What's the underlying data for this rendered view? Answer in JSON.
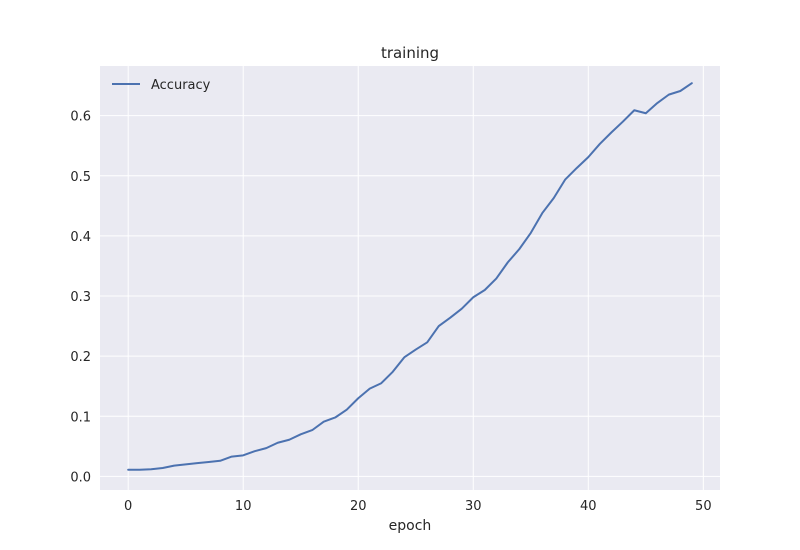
{
  "chart_data": {
    "type": "line",
    "title": "training",
    "xlabel": "epoch",
    "ylabel": "",
    "xlim": [
      -2.45,
      51.45
    ],
    "ylim": [
      -0.0226,
      0.6826
    ],
    "xticks": [
      0,
      10,
      20,
      30,
      40,
      50
    ],
    "yticks": [
      0.0,
      0.1,
      0.2,
      0.3,
      0.4,
      0.5,
      0.6
    ],
    "ytick_labels": [
      "0.0",
      "0.1",
      "0.2",
      "0.3",
      "0.4",
      "0.5",
      "0.6"
    ],
    "grid": true,
    "legend": "top-left",
    "colors": {
      "background": "#eaeaf2",
      "grid": "#ffffff",
      "series": "#4c72b0",
      "text": "#262626"
    },
    "series": [
      {
        "name": "Accuracy",
        "x": [
          0,
          1,
          2,
          3,
          4,
          5,
          6,
          7,
          8,
          9,
          10,
          11,
          12,
          13,
          14,
          15,
          16,
          17,
          18,
          19,
          20,
          21,
          22,
          23,
          24,
          25,
          26,
          27,
          28,
          29,
          30,
          31,
          32,
          33,
          34,
          35,
          36,
          37,
          38,
          39,
          40,
          41,
          42,
          43,
          44,
          45,
          46,
          47,
          48,
          49
        ],
        "values": [
          0.011,
          0.011,
          0.012,
          0.014,
          0.018,
          0.02,
          0.022,
          0.024,
          0.026,
          0.033,
          0.035,
          0.042,
          0.047,
          0.056,
          0.061,
          0.07,
          0.077,
          0.091,
          0.098,
          0.111,
          0.13,
          0.146,
          0.155,
          0.174,
          0.198,
          0.211,
          0.223,
          0.25,
          0.264,
          0.279,
          0.298,
          0.31,
          0.329,
          0.356,
          0.378,
          0.405,
          0.438,
          0.463,
          0.494,
          0.513,
          0.531,
          0.553,
          0.572,
          0.59,
          0.609,
          0.604,
          0.621,
          0.635,
          0.641,
          0.654
        ]
      }
    ]
  }
}
